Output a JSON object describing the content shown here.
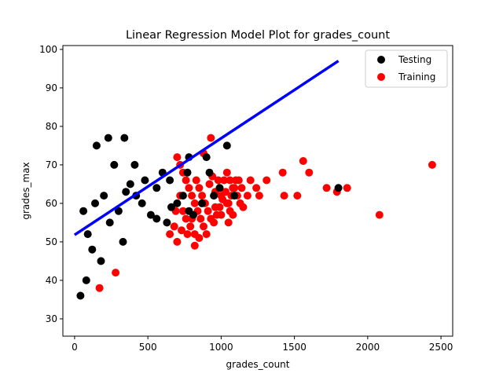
{
  "chart_data": {
    "type": "scatter",
    "title": "Linear Regression Model Plot for grades_count",
    "xlabel": "grades_count",
    "ylabel": "grades_max",
    "xlim": [
      -80,
      2580
    ],
    "ylim": [
      25.5,
      101
    ],
    "xticks": [
      0,
      500,
      1000,
      1500,
      2000,
      2500
    ],
    "yticks": [
      30,
      40,
      50,
      60,
      70,
      80,
      90,
      100
    ],
    "legend_position": "top-right",
    "colors": {
      "testing": "#000000",
      "training": "#ff0000",
      "regression": "#0000ff"
    },
    "regression_line": {
      "name": "Regression",
      "x": [
        0,
        1800
      ],
      "y": [
        51.8,
        97
      ]
    },
    "series": [
      {
        "name": "Testing",
        "color": "#000000",
        "points": [
          [
            340,
            77
          ],
          [
            230,
            77
          ],
          [
            150,
            75
          ],
          [
            270,
            70
          ],
          [
            380,
            65
          ],
          [
            420,
            62
          ],
          [
            460,
            60
          ],
          [
            520,
            57
          ],
          [
            560,
            56
          ],
          [
            630,
            55
          ],
          [
            660,
            59
          ],
          [
            700,
            60
          ],
          [
            740,
            62
          ],
          [
            780,
            58
          ],
          [
            810,
            57
          ],
          [
            770,
            68
          ],
          [
            780,
            72
          ],
          [
            900,
            72
          ],
          [
            920,
            68
          ],
          [
            990,
            64
          ],
          [
            1040,
            75
          ],
          [
            870,
            60
          ],
          [
            950,
            62
          ],
          [
            1090,
            62
          ],
          [
            1800,
            64
          ],
          [
            60,
            58
          ],
          [
            90,
            52
          ],
          [
            120,
            48
          ],
          [
            180,
            45
          ],
          [
            200,
            62
          ],
          [
            300,
            58
          ],
          [
            350,
            63
          ],
          [
            480,
            66
          ],
          [
            560,
            64
          ],
          [
            650,
            66
          ],
          [
            80,
            40
          ],
          [
            40,
            36
          ],
          [
            140,
            60
          ],
          [
            240,
            55
          ],
          [
            330,
            50
          ],
          [
            410,
            70
          ],
          [
            600,
            68
          ]
        ]
      },
      {
        "name": "Training",
        "color": "#ff0000",
        "points": [
          [
            700,
            72
          ],
          [
            720,
            70
          ],
          [
            740,
            68
          ],
          [
            760,
            66
          ],
          [
            780,
            64
          ],
          [
            800,
            62
          ],
          [
            820,
            60
          ],
          [
            840,
            58
          ],
          [
            860,
            56
          ],
          [
            880,
            54
          ],
          [
            900,
            52
          ],
          [
            720,
            62
          ],
          [
            740,
            58
          ],
          [
            760,
            56
          ],
          [
            790,
            54
          ],
          [
            820,
            52
          ],
          [
            850,
            51
          ],
          [
            650,
            52
          ],
          [
            680,
            54
          ],
          [
            700,
            50
          ],
          [
            730,
            53
          ],
          [
            830,
            66
          ],
          [
            850,
            64
          ],
          [
            870,
            62
          ],
          [
            890,
            60
          ],
          [
            910,
            58
          ],
          [
            930,
            56
          ],
          [
            950,
            55
          ],
          [
            970,
            57
          ],
          [
            990,
            59
          ],
          [
            1010,
            61
          ],
          [
            1030,
            63
          ],
          [
            1050,
            60
          ],
          [
            1070,
            62
          ],
          [
            1090,
            64
          ],
          [
            1110,
            62
          ],
          [
            1130,
            60
          ],
          [
            1150,
            59
          ],
          [
            920,
            65
          ],
          [
            940,
            67
          ],
          [
            960,
            63
          ],
          [
            980,
            66
          ],
          [
            1000,
            62
          ],
          [
            1020,
            66
          ],
          [
            1040,
            68
          ],
          [
            1060,
            66
          ],
          [
            1080,
            64
          ],
          [
            1100,
            66
          ],
          [
            1120,
            66
          ],
          [
            1140,
            64
          ],
          [
            1040,
            60
          ],
          [
            1060,
            58
          ],
          [
            1080,
            57
          ],
          [
            1000,
            57
          ],
          [
            960,
            59
          ],
          [
            1050,
            55
          ],
          [
            820,
            49
          ],
          [
            880,
            73
          ],
          [
            930,
            77
          ],
          [
            770,
            52
          ],
          [
            690,
            58
          ],
          [
            800,
            56
          ],
          [
            1180,
            62
          ],
          [
            1260,
            62
          ],
          [
            1310,
            66
          ],
          [
            1420,
            68
          ],
          [
            1430,
            62
          ],
          [
            1520,
            62
          ],
          [
            1560,
            71
          ],
          [
            1600,
            68
          ],
          [
            1720,
            64
          ],
          [
            1790,
            63
          ],
          [
            1860,
            64
          ],
          [
            2080,
            57
          ],
          [
            2440,
            70
          ],
          [
            280,
            42
          ],
          [
            170,
            38
          ],
          [
            1200,
            66
          ],
          [
            1240,
            64
          ]
        ]
      }
    ]
  }
}
